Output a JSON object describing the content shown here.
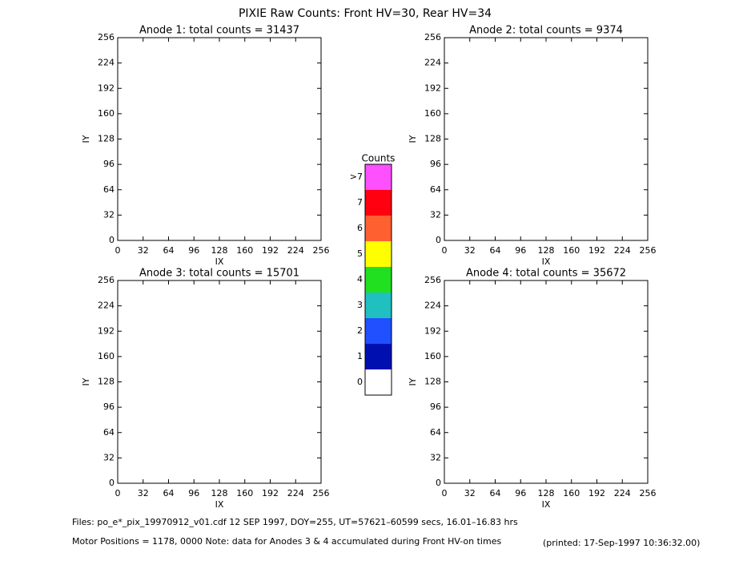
{
  "title": "PIXIE Raw Counts:  Front HV=30, Rear HV=34",
  "chart_data": [
    {
      "type": "heatmap",
      "title": "Anode 1: total counts = 31437",
      "x_label": "IX",
      "y_label": "IY",
      "xlim": [
        0,
        256
      ],
      "ylim": [
        0,
        256
      ],
      "xticks": [
        0,
        32,
        64,
        96,
        128,
        160,
        192,
        224,
        256
      ],
      "yticks": [
        0,
        32,
        64,
        96,
        128,
        160,
        192,
        224,
        256
      ]
    },
    {
      "type": "heatmap",
      "title": "Anode 2: total counts = 9374",
      "x_label": "IX",
      "y_label": "IY",
      "xlim": [
        0,
        256
      ],
      "ylim": [
        0,
        256
      ],
      "xticks": [
        0,
        32,
        64,
        96,
        128,
        160,
        192,
        224,
        256
      ],
      "yticks": [
        0,
        32,
        64,
        96,
        128,
        160,
        192,
        224,
        256
      ]
    },
    {
      "type": "heatmap",
      "title": "Anode 3: total counts = 15701",
      "x_label": "IX",
      "y_label": "IY",
      "xlim": [
        0,
        256
      ],
      "ylim": [
        0,
        256
      ],
      "xticks": [
        0,
        32,
        64,
        96,
        128,
        160,
        192,
        224,
        256
      ],
      "yticks": [
        0,
        32,
        64,
        96,
        128,
        160,
        192,
        224,
        256
      ]
    },
    {
      "type": "heatmap",
      "title": "Anode 4: total counts = 35672",
      "x_label": "IX",
      "y_label": "IY",
      "xlim": [
        0,
        256
      ],
      "ylim": [
        0,
        256
      ],
      "xticks": [
        0,
        32,
        64,
        96,
        128,
        160,
        192,
        224,
        256
      ],
      "yticks": [
        0,
        32,
        64,
        96,
        128,
        160,
        192,
        224,
        256
      ]
    }
  ],
  "colorbar": {
    "title": "Counts",
    "labels": [
      "0",
      "1",
      "2",
      "3",
      "4",
      "5",
      "6",
      "7",
      ">7"
    ],
    "colors": [
      "#ffffff",
      "#0010b0",
      "#2050ff",
      "#20c0c0",
      "#20e020",
      "#ffff00",
      "#ff6030",
      "#ff0010",
      "#ff50ff"
    ]
  },
  "footer": {
    "files": "Files: po_e*_pix_19970912_v01.cdf    12 SEP 1997, DOY=255, UT=57621–60599 secs, 16.01–16.83 hrs",
    "motor": "Motor Positions = 1178, 0000    Note: data for Anodes 3 & 4 accumulated during Front HV-on times",
    "printed": "(printed: 17-Sep-1997 10:36:32.00)"
  }
}
